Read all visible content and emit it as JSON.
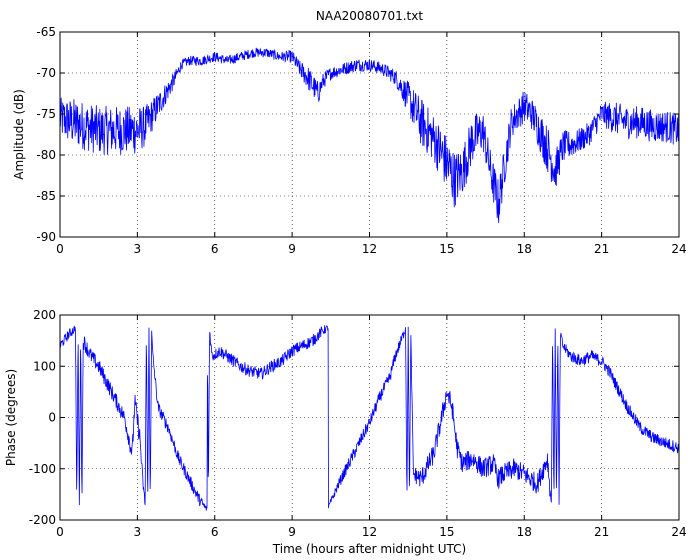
{
  "chart_data": [
    {
      "type": "line",
      "title": "NAA20080701.txt",
      "xlabel": "",
      "ylabel": "Amplitude (dB)",
      "xlim": [
        0,
        24
      ],
      "ylim": [
        -90,
        -65
      ],
      "xticks": [
        "0",
        "3",
        "6",
        "9",
        "12",
        "15",
        "18",
        "21",
        "24"
      ],
      "yticks": [
        "-65",
        "-70",
        "-75",
        "-80",
        "-85",
        "-90"
      ],
      "grid": true,
      "color": "#0000ff",
      "series": [
        {
          "x": [
            0,
            0.5,
            1,
            1.5,
            2,
            2.5,
            3,
            3.3,
            3.6,
            4,
            4.4,
            4.7,
            5,
            5.5,
            6,
            6.5,
            7,
            7.5,
            8,
            8.5,
            9,
            9.3,
            9.6,
            9.8,
            10,
            10.2,
            10.5,
            11,
            11.5,
            12,
            12.5,
            13,
            13.3,
            13.5,
            14,
            14.5,
            15,
            15.3,
            15.6,
            16,
            16.4,
            16.7,
            17,
            17.2,
            17.5,
            18,
            18.3,
            18.6,
            19,
            19.2,
            19.5,
            20,
            20.5,
            21,
            21.5,
            22,
            22.5,
            23,
            23.5,
            24
          ],
          "values": [
            -75.5,
            -76,
            -76.5,
            -77,
            -77,
            -77,
            -77,
            -76.5,
            -75,
            -73,
            -71,
            -69,
            -68.5,
            -68.5,
            -68,
            -68.5,
            -68,
            -67.5,
            -67.5,
            -68,
            -68,
            -69.5,
            -70.5,
            -71.5,
            -72.5,
            -71,
            -70,
            -69.5,
            -69,
            -69,
            -69.5,
            -70.5,
            -72,
            -73,
            -76,
            -78,
            -81,
            -83,
            -82,
            -78,
            -77,
            -82,
            -86,
            -82,
            -76,
            -74,
            -75,
            -77,
            -80,
            -82,
            -79,
            -78.5,
            -77.5,
            -75,
            -75.5,
            -76,
            -76,
            -76.5,
            -76.5,
            -77
          ],
          "noise": [
            2.5,
            3,
            3,
            3,
            3,
            3,
            3,
            2.5,
            2,
            1.5,
            1,
            0.6,
            0.6,
            0.6,
            0.6,
            0.6,
            0.6,
            0.6,
            0.6,
            0.6,
            0.8,
            1,
            1.5,
            1.5,
            1.5,
            1,
            0.8,
            0.8,
            0.8,
            0.8,
            0.8,
            1,
            1.5,
            2,
            3,
            3,
            3.5,
            3.5,
            3,
            3,
            2.5,
            2.5,
            3,
            2.5,
            2,
            2,
            2,
            2.5,
            3,
            2.5,
            2,
            1.5,
            1.5,
            1.5,
            2,
            2,
            2,
            2,
            2,
            2
          ]
        }
      ]
    },
    {
      "type": "line",
      "title": "",
      "xlabel": "Time (hours after midnight UTC)",
      "ylabel": "Phase (degrees)",
      "xlim": [
        0,
        24
      ],
      "ylim": [
        -200,
        200
      ],
      "xticks": [
        "0",
        "3",
        "6",
        "9",
        "12",
        "15",
        "18",
        "21",
        "24"
      ],
      "yticks": [
        "200",
        "100",
        "0",
        "-100",
        "-200"
      ],
      "grid": true,
      "color": "#0000ff",
      "series": [
        {
          "x": [
            0,
            0.3,
            0.5,
            0.6,
            0.65,
            0.7,
            0.75,
            0.8,
            0.85,
            0.9,
            1.2,
            1.5,
            2,
            2.5,
            2.8,
            2.9,
            3.1,
            3.2,
            3.3,
            3.35,
            3.4,
            3.45,
            3.5,
            3.55,
            3.6,
            3.8,
            4.2,
            4.6,
            5,
            5.4,
            5.7,
            5.72,
            5.75,
            5.8,
            5.85,
            5.9,
            6.2,
            6.6,
            7,
            7.4,
            7.8,
            8.2,
            8.6,
            9,
            9.4,
            9.8,
            10.2,
            10.4,
            10.41,
            10.45,
            10.8,
            11.2,
            11.6,
            12,
            12.4,
            12.8,
            13,
            13.3,
            13.4,
            13.45,
            13.5,
            13.55,
            13.6,
            13.7,
            14,
            14.5,
            14.8,
            15,
            15.2,
            15.4,
            15.6,
            16,
            16.4,
            16.8,
            17,
            17.2,
            17.6,
            18,
            18.5,
            18.9,
            19,
            19.05,
            19.1,
            19.15,
            19.2,
            19.25,
            19.3,
            19.35,
            19.4,
            19.5,
            19.8,
            20.2,
            20.6,
            21,
            21.3,
            21.6,
            22,
            22.5,
            23,
            23.5,
            24
          ],
          "values": [
            140,
            160,
            170,
            175,
            -175,
            175,
            -175,
            170,
            -175,
            150,
            120,
            100,
            50,
            0,
            -70,
            30,
            -40,
            -120,
            -170,
            175,
            -175,
            175,
            -170,
            170,
            120,
            20,
            -20,
            -80,
            -120,
            -160,
            -180,
            175,
            -175,
            175,
            140,
            120,
            130,
            115,
            100,
            90,
            85,
            100,
            110,
            130,
            140,
            150,
            170,
            175,
            -175,
            -170,
            -130,
            -90,
            -50,
            -10,
            40,
            80,
            120,
            160,
            175,
            -175,
            175,
            -170,
            170,
            -110,
            -120,
            -70,
            0,
            50,
            20,
            -60,
            -90,
            -80,
            -100,
            -90,
            -120,
            -110,
            -100,
            -110,
            -130,
            -80,
            -140,
            -170,
            175,
            -175,
            175,
            -175,
            170,
            -170,
            165,
            140,
            120,
            110,
            120,
            110,
            90,
            60,
            20,
            -20,
            -40,
            -50,
            -60
          ],
          "noise": [
            10,
            10,
            10,
            6,
            6,
            6,
            6,
            6,
            6,
            15,
            15,
            15,
            15,
            15,
            20,
            20,
            20,
            15,
            8,
            6,
            6,
            6,
            6,
            6,
            10,
            12,
            12,
            12,
            12,
            12,
            6,
            6,
            6,
            6,
            12,
            12,
            12,
            12,
            12,
            12,
            12,
            12,
            12,
            12,
            12,
            12,
            10,
            6,
            6,
            6,
            10,
            12,
            12,
            12,
            12,
            12,
            12,
            10,
            6,
            6,
            6,
            6,
            6,
            15,
            20,
            20,
            20,
            20,
            20,
            20,
            20,
            20,
            20,
            20,
            20,
            20,
            20,
            20,
            20,
            20,
            20,
            6,
            6,
            6,
            6,
            6,
            6,
            6,
            6,
            10,
            12,
            12,
            12,
            12,
            12,
            12,
            12,
            12,
            12,
            12,
            12
          ]
        }
      ]
    }
  ]
}
